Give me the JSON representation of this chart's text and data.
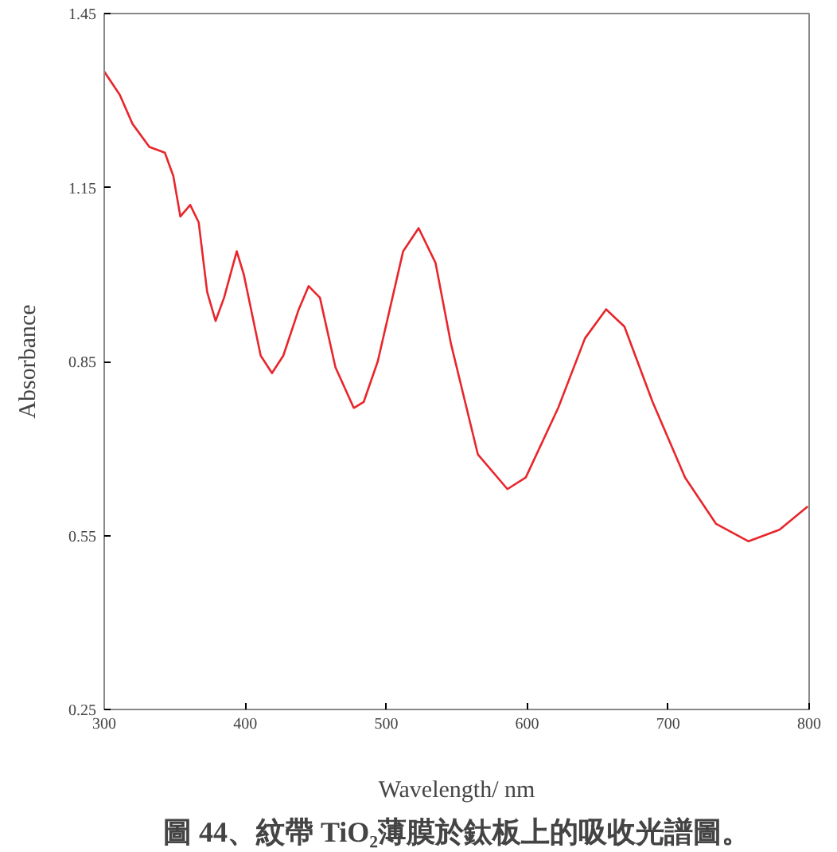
{
  "chart_data": {
    "type": "line",
    "xlabel": "Wavelength/ nm",
    "ylabel": "Absorbance",
    "annotations": [
      "圖 44、紋帶 TiO₂薄膜於鈦板上的吸收光譜圖。"
    ],
    "xlim": [
      300,
      800
    ],
    "ylim": [
      0.25,
      1.45
    ],
    "xticks": [
      300,
      400,
      500,
      600,
      700,
      800
    ],
    "yticks": [
      {
        "value": 0.25,
        "label": "0.25"
      },
      {
        "value": 0.55,
        "label": "0.55"
      },
      {
        "value": 0.85,
        "label": "0.85"
      },
      {
        "value": 1.15,
        "label": "1.15"
      },
      {
        "value": 1.45,
        "label": "1.45"
      }
    ],
    "grid": false,
    "marker": "none",
    "line_style": "solid",
    "series": [
      {
        "color": "#e8262b",
        "x": [
          300,
          311,
          320,
          332,
          343,
          349,
          354,
          361,
          367,
          373,
          379,
          385,
          394,
          399,
          411,
          419,
          427,
          438,
          445,
          453,
          464,
          477,
          484,
          494,
          512,
          523,
          535,
          546,
          565,
          586,
          599,
          622,
          641,
          656,
          669,
          689,
          712,
          734,
          757,
          779,
          799
        ],
        "values": [
          1.35,
          1.31,
          1.26,
          1.22,
          1.21,
          1.17,
          1.1,
          1.12,
          1.09,
          0.97,
          0.92,
          0.96,
          1.04,
          1.0,
          0.86,
          0.83,
          0.86,
          0.94,
          0.98,
          0.96,
          0.84,
          0.77,
          0.78,
          0.85,
          1.04,
          1.08,
          1.02,
          0.88,
          0.69,
          0.63,
          0.65,
          0.77,
          0.89,
          0.94,
          0.91,
          0.78,
          0.65,
          0.57,
          0.54,
          0.56,
          0.6
        ]
      }
    ]
  }
}
